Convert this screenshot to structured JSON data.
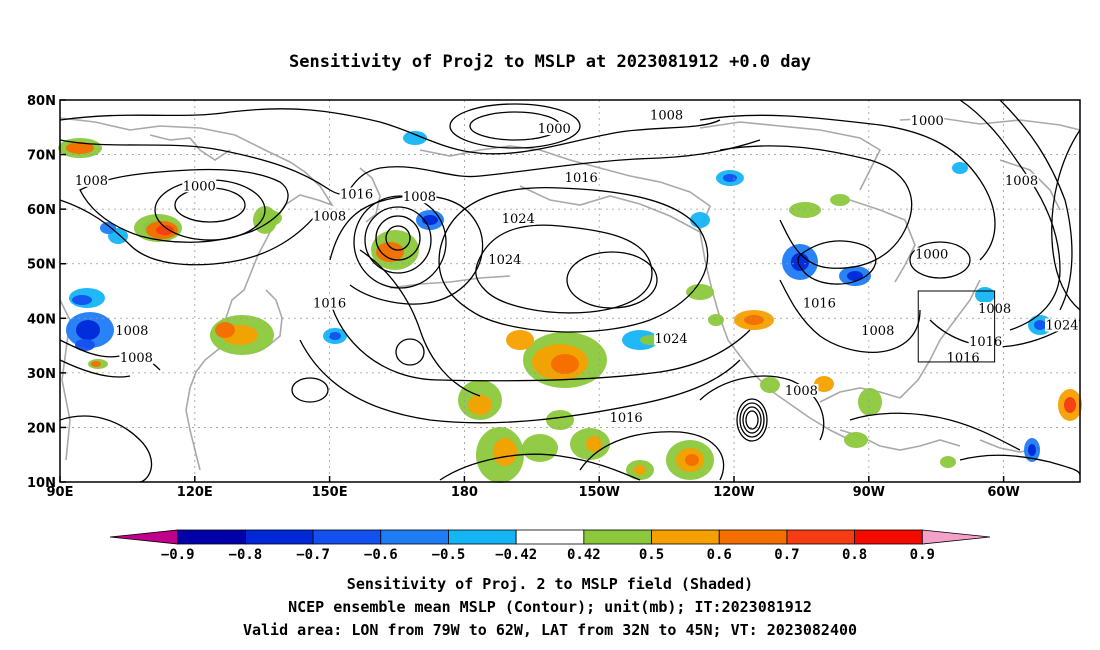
{
  "chart_data": {
    "type": "contour",
    "title": "Sensitivity of Proj2 to MSLP at 2023081912 +0.0 day",
    "x_ticks": [
      {
        "lon": 90,
        "label": "90E"
      },
      {
        "lon": 120,
        "label": "120E"
      },
      {
        "lon": 150,
        "label": "150E"
      },
      {
        "lon": 180,
        "label": "180"
      },
      {
        "lon": 210,
        "label": "150W"
      },
      {
        "lon": 240,
        "label": "120W"
      },
      {
        "lon": 270,
        "label": "90W"
      },
      {
        "lon": 300,
        "label": "60W"
      }
    ],
    "y_ticks": [
      {
        "lat": 10,
        "label": "10N"
      },
      {
        "lat": 20,
        "label": "20N"
      },
      {
        "lat": 30,
        "label": "30N"
      },
      {
        "lat": 40,
        "label": "40N"
      },
      {
        "lat": 50,
        "label": "50N"
      },
      {
        "lat": 60,
        "label": "60N"
      },
      {
        "lat": 70,
        "label": "70N"
      },
      {
        "lat": 80,
        "label": "80N"
      }
    ],
    "xlim": [
      90,
      317
    ],
    "ylim": [
      10,
      80
    ],
    "grid": true,
    "contour_labels": [
      {
        "lon": 200,
        "lat": 74.5,
        "text": "1000"
      },
      {
        "lon": 225,
        "lat": 77,
        "text": "1008"
      },
      {
        "lon": 283,
        "lat": 76,
        "text": "1000"
      },
      {
        "lon": 206,
        "lat": 65.5,
        "text": "1016"
      },
      {
        "lon": 97,
        "lat": 65,
        "text": "1008"
      },
      {
        "lon": 121,
        "lat": 64,
        "text": "1000"
      },
      {
        "lon": 156,
        "lat": 62.5,
        "text": "1016"
      },
      {
        "lon": 170,
        "lat": 62,
        "text": "1008"
      },
      {
        "lon": 150,
        "lat": 58.5,
        "text": "1008"
      },
      {
        "lon": 192,
        "lat": 58,
        "text": "1024"
      },
      {
        "lon": 304,
        "lat": 65,
        "text": "1008"
      },
      {
        "lon": 189,
        "lat": 50.5,
        "text": "1024"
      },
      {
        "lon": 284,
        "lat": 51.5,
        "text": "1000"
      },
      {
        "lon": 150,
        "lat": 42.5,
        "text": "1016"
      },
      {
        "lon": 259,
        "lat": 42.5,
        "text": "1016"
      },
      {
        "lon": 298,
        "lat": 41.5,
        "text": "1008"
      },
      {
        "lon": 106,
        "lat": 37.5,
        "text": "1008"
      },
      {
        "lon": 272,
        "lat": 37.5,
        "text": "1008"
      },
      {
        "lon": 313,
        "lat": 38.5,
        "text": "1024"
      },
      {
        "lon": 226,
        "lat": 36,
        "text": "1024"
      },
      {
        "lon": 296,
        "lat": 35.5,
        "text": "1016"
      },
      {
        "lon": 291,
        "lat": 32.5,
        "text": "1016"
      },
      {
        "lon": 107,
        "lat": 32.5,
        "text": "1008"
      },
      {
        "lon": 255,
        "lat": 26.5,
        "text": "1008"
      },
      {
        "lon": 216,
        "lat": 21.5,
        "text": "1016"
      }
    ],
    "valid_box": {
      "lon": [
        281,
        298
      ],
      "lat": [
        32,
        45
      ]
    },
    "colorbar": {
      "labels": [
        "−0.9",
        "−0.8",
        "−0.7",
        "−0.6",
        "−0.5",
        "−0.42",
        "0.42",
        "0.5",
        "0.6",
        "0.7",
        "0.8",
        "0.9"
      ],
      "colors": [
        "#c0008a",
        "#0000a8",
        "#0028d8",
        "#1450f0",
        "#1e7cf5",
        "#14b4f5",
        "#ffffff",
        "#8cc83c",
        "#f5a000",
        "#f56e00",
        "#f53c14",
        "#f50a00",
        "#f5a0c8"
      ]
    },
    "shaded_field": "Sensitivity of Proj. 2 to MSLP field",
    "contour_field": "NCEP ensemble mean MSLP",
    "unit": "mb"
  },
  "caption": {
    "line1": "Sensitivity of Proj. 2 to MSLP field (Shaded)",
    "line2": "NCEP ensemble mean MSLP (Contour); unit(mb); IT:2023081912",
    "line3": "Valid area: LON from 79W to 62W, LAT from 32N to 45N; VT: 2023082400"
  }
}
